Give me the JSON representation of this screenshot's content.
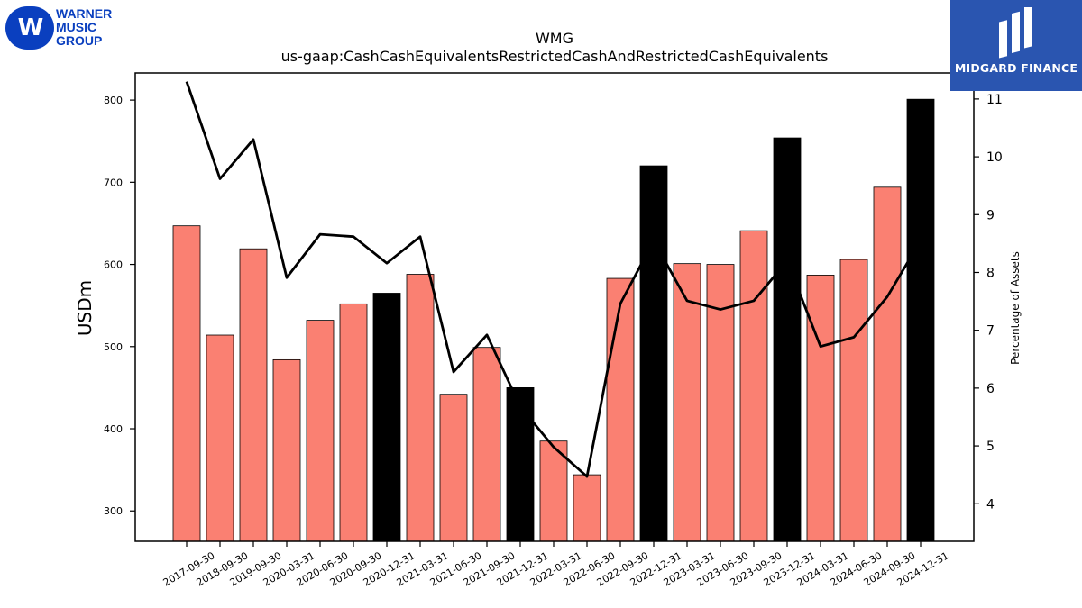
{
  "logos": {
    "left": {
      "badge": "W",
      "line1": "WARNER",
      "line2": "MUSIC",
      "line3": "GROUP"
    },
    "right": {
      "name": "MIDGARD FINANCE"
    }
  },
  "chart_data": {
    "type": "bar",
    "title": "WMG",
    "subtitle": "us-gaap:CashCashEquivalentsRestrictedCashAndRestrictedCashEquivalents",
    "ylabel": "USDm",
    "y2label": "Percentage of Assets",
    "ylim": [
      263,
      833
    ],
    "y2lim": [
      3.35,
      11.45
    ],
    "yticks": [
      300,
      400,
      500,
      600,
      700,
      800
    ],
    "y2ticks": [
      4,
      5,
      6,
      7,
      8,
      9,
      10,
      11
    ],
    "categories": [
      "2017-09-30",
      "2018-09-30",
      "2019-09-30",
      "2020-03-31",
      "2020-06-30",
      "2020-09-30",
      "2020-12-31",
      "2021-03-31",
      "2021-06-30",
      "2021-09-30",
      "2021-12-31",
      "2022-03-31",
      "2022-06-30",
      "2022-09-30",
      "2022-12-31",
      "2023-03-31",
      "2023-06-30",
      "2023-09-30",
      "2023-12-31",
      "2024-03-31",
      "2024-06-30",
      "2024-09-30",
      "2024-12-31"
    ],
    "series": [
      {
        "kind": "bar",
        "values": [
          647,
          514,
          619,
          484,
          532,
          552,
          565,
          588,
          442,
          499,
          450,
          385,
          344,
          583,
          720,
          601,
          600,
          641,
          754,
          587,
          606,
          694,
          801
        ],
        "colors": [
          "#fa8072",
          "#fa8072",
          "#fa8072",
          "#fa8072",
          "#fa8072",
          "#fa8072",
          "#000000",
          "#fa8072",
          "#fa8072",
          "#fa8072",
          "#000000",
          "#fa8072",
          "#fa8072",
          "#fa8072",
          "#000000",
          "#fa8072",
          "#fa8072",
          "#fa8072",
          "#000000",
          "#fa8072",
          "#fa8072",
          "#fa8072",
          "#000000"
        ]
      },
      {
        "kind": "line",
        "axis": "right",
        "color": "#000000",
        "values": [
          11.3,
          9.62,
          10.3,
          7.91,
          8.66,
          8.62,
          8.16,
          8.62,
          6.28,
          6.92,
          5.68,
          4.98,
          4.47,
          7.46,
          8.55,
          7.51,
          7.36,
          7.51,
          8.2,
          6.72,
          6.88,
          7.58,
          8.55
        ]
      }
    ]
  }
}
